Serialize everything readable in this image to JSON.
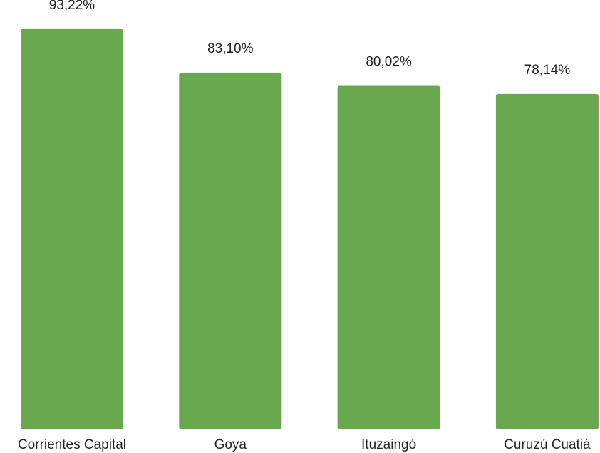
{
  "chart_data": {
    "type": "bar",
    "categories": [
      "Corrientes Capital",
      "Goya",
      "Ituzaingó",
      "Curuzú Cuatiá"
    ],
    "values": [
      93.22,
      83.1,
      80.02,
      78.14
    ],
    "value_labels": [
      "93,22%",
      "83,10%",
      "80,02%",
      "78,14%"
    ],
    "ylim": [
      0,
      100
    ],
    "grid": false,
    "legend": "none",
    "bar_color": "#6aa84f"
  }
}
